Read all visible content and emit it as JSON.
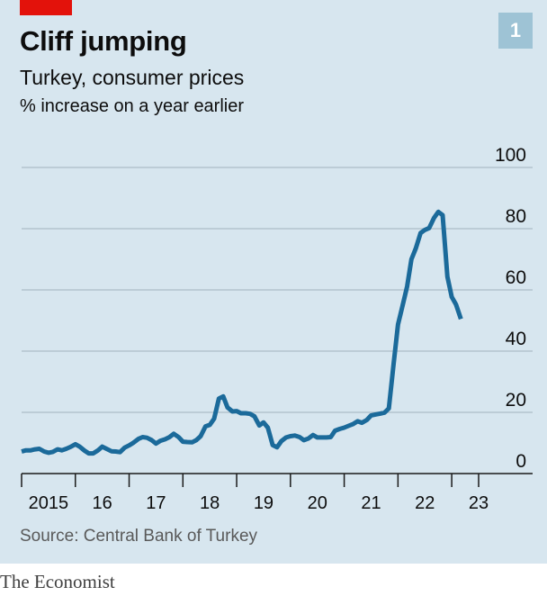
{
  "header": {
    "title": "Cliff jumping",
    "subtitle": "Turkey, consumer prices",
    "unit_label": "% increase on a year earlier",
    "chart_number": "1"
  },
  "source": "Source: Central Bank of Turkey",
  "publisher": "The Economist",
  "colors": {
    "line": "#1b6a9a",
    "background": "#d7e6ef",
    "accent": "#e3120b",
    "badge": "#9ec3d5",
    "grid": "#b3c4cd",
    "axis": "#1a1a1a"
  },
  "chart_data": {
    "type": "line",
    "title": "Cliff jumping",
    "subtitle": "Turkey, consumer prices",
    "ylabel": "% increase on a year earlier",
    "ylim": [
      0,
      100
    ],
    "yticks": [
      0,
      20,
      40,
      60,
      80,
      100
    ],
    "y_axis_side": "right",
    "xlim": [
      2015.0,
      2023.5
    ],
    "xticks": [
      {
        "label": "2015",
        "value": 2015.0
      },
      {
        "label": "16",
        "value": 2016.0
      },
      {
        "label": "17",
        "value": 2017.0
      },
      {
        "label": "18",
        "value": 2018.0
      },
      {
        "label": "19",
        "value": 2019.0
      },
      {
        "label": "20",
        "value": 2020.0
      },
      {
        "label": "21",
        "value": 2021.0
      },
      {
        "label": "22",
        "value": 2022.0
      },
      {
        "label": "23",
        "value": 2023.0
      }
    ],
    "grid": true,
    "series": [
      {
        "color": "#1b6a9a",
        "x": [
          2015.0,
          2015.08,
          2015.17,
          2015.25,
          2015.33,
          2015.42,
          2015.5,
          2015.58,
          2015.67,
          2015.75,
          2015.83,
          2015.92,
          2016.0,
          2016.08,
          2016.17,
          2016.25,
          2016.33,
          2016.42,
          2016.5,
          2016.58,
          2016.67,
          2016.75,
          2016.83,
          2016.92,
          2017.0,
          2017.08,
          2017.17,
          2017.25,
          2017.33,
          2017.42,
          2017.5,
          2017.58,
          2017.67,
          2017.75,
          2017.83,
          2017.92,
          2018.0,
          2018.08,
          2018.17,
          2018.25,
          2018.33,
          2018.42,
          2018.5,
          2018.58,
          2018.67,
          2018.75,
          2018.83,
          2018.92,
          2019.0,
          2019.08,
          2019.17,
          2019.25,
          2019.33,
          2019.42,
          2019.5,
          2019.58,
          2019.67,
          2019.75,
          2019.83,
          2019.92,
          2020.0,
          2020.08,
          2020.17,
          2020.25,
          2020.33,
          2020.42,
          2020.5,
          2020.58,
          2020.67,
          2020.75,
          2020.83,
          2020.92,
          2021.0,
          2021.08,
          2021.17,
          2021.25,
          2021.33,
          2021.42,
          2021.5,
          2021.58,
          2021.67,
          2021.75,
          2021.83,
          2021.92,
          2022.0,
          2022.08,
          2022.17,
          2022.25,
          2022.33,
          2022.42,
          2022.5,
          2022.58,
          2022.67,
          2022.75,
          2022.83,
          2022.92,
          2023.0,
          2023.08,
          2023.17
        ],
        "values": [
          7.2,
          7.6,
          7.6,
          7.9,
          8.1,
          7.2,
          6.8,
          7.1,
          7.9,
          7.6,
          8.1,
          8.8,
          9.6,
          8.8,
          7.5,
          6.6,
          6.6,
          7.6,
          8.8,
          8.1,
          7.3,
          7.2,
          7.0,
          8.5,
          9.2,
          10.1,
          11.3,
          11.9,
          11.7,
          10.9,
          9.8,
          10.7,
          11.2,
          11.9,
          13.0,
          11.9,
          10.4,
          10.3,
          10.2,
          10.9,
          12.2,
          15.4,
          15.9,
          17.9,
          24.5,
          25.2,
          21.6,
          20.3,
          20.4,
          19.7,
          19.7,
          19.5,
          18.7,
          15.7,
          16.7,
          15.0,
          9.3,
          8.6,
          10.6,
          11.8,
          12.2,
          12.4,
          11.9,
          10.9,
          11.4,
          12.6,
          11.8,
          11.8,
          11.8,
          11.9,
          14.0,
          14.6,
          15.0,
          15.6,
          16.2,
          17.1,
          16.6,
          17.5,
          19.0,
          19.3,
          19.6,
          19.9,
          21.3,
          36.1,
          48.7,
          54.4,
          61.1,
          70.0,
          73.5,
          78.6,
          79.6,
          80.2,
          83.5,
          85.5,
          84.4,
          64.3,
          57.7,
          55.2,
          50.5
        ]
      }
    ]
  }
}
